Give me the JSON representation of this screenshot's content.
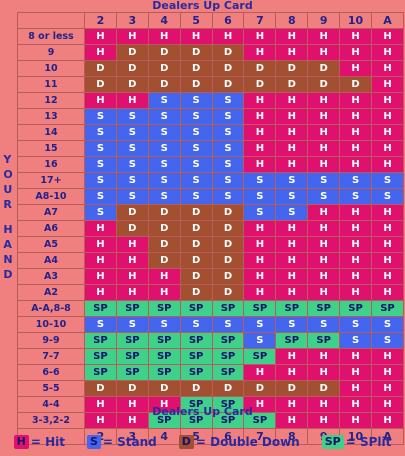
{
  "header_top": "Dealers Up Card",
  "header_bottom": "Dealers Up Card",
  "side_label_top": [
    "Y",
    "O",
    "U",
    "R"
  ],
  "side_label_bottom": [
    "H",
    "A",
    "N",
    "D"
  ],
  "dealer_cards": [
    "2",
    "3",
    "4",
    "5",
    "6",
    "7",
    "8",
    "9",
    "10",
    "A"
  ],
  "rows": [
    {
      "hand": "8 or less",
      "actions": [
        "H",
        "H",
        "H",
        "H",
        "H",
        "H",
        "H",
        "H",
        "H",
        "H"
      ]
    },
    {
      "hand": "9",
      "actions": [
        "H",
        "D",
        "D",
        "D",
        "D",
        "H",
        "H",
        "H",
        "H",
        "H"
      ]
    },
    {
      "hand": "10",
      "actions": [
        "D",
        "D",
        "D",
        "D",
        "D",
        "D",
        "D",
        "D",
        "H",
        "H"
      ]
    },
    {
      "hand": "11",
      "actions": [
        "D",
        "D",
        "D",
        "D",
        "D",
        "D",
        "D",
        "D",
        "D",
        "H"
      ]
    },
    {
      "hand": "12",
      "actions": [
        "H",
        "H",
        "S",
        "S",
        "S",
        "H",
        "H",
        "H",
        "H",
        "H"
      ]
    },
    {
      "hand": "13",
      "actions": [
        "S",
        "S",
        "S",
        "S",
        "S",
        "H",
        "H",
        "H",
        "H",
        "H"
      ]
    },
    {
      "hand": "14",
      "actions": [
        "S",
        "S",
        "S",
        "S",
        "S",
        "H",
        "H",
        "H",
        "H",
        "H"
      ]
    },
    {
      "hand": "15",
      "actions": [
        "S",
        "S",
        "S",
        "S",
        "S",
        "H",
        "H",
        "H",
        "H",
        "H"
      ]
    },
    {
      "hand": "16",
      "actions": [
        "S",
        "S",
        "S",
        "S",
        "S",
        "H",
        "H",
        "H",
        "H",
        "H"
      ]
    },
    {
      "hand": "17+",
      "actions": [
        "S",
        "S",
        "S",
        "S",
        "S",
        "S",
        "S",
        "S",
        "S",
        "S"
      ]
    },
    {
      "hand": "A8-10",
      "actions": [
        "S",
        "S",
        "S",
        "S",
        "S",
        "S",
        "S",
        "S",
        "S",
        "S"
      ]
    },
    {
      "hand": "A7",
      "actions": [
        "S",
        "D",
        "D",
        "D",
        "D",
        "S",
        "S",
        "H",
        "H",
        "H"
      ]
    },
    {
      "hand": "A6",
      "actions": [
        "H",
        "D",
        "D",
        "D",
        "D",
        "H",
        "H",
        "H",
        "H",
        "H"
      ]
    },
    {
      "hand": "A5",
      "actions": [
        "H",
        "H",
        "D",
        "D",
        "D",
        "H",
        "H",
        "H",
        "H",
        "H"
      ]
    },
    {
      "hand": "A4",
      "actions": [
        "H",
        "H",
        "D",
        "D",
        "D",
        "H",
        "H",
        "H",
        "H",
        "H"
      ]
    },
    {
      "hand": "A3",
      "actions": [
        "H",
        "H",
        "H",
        "D",
        "D",
        "H",
        "H",
        "H",
        "H",
        "H"
      ]
    },
    {
      "hand": "A2",
      "actions": [
        "H",
        "H",
        "H",
        "D",
        "D",
        "H",
        "H",
        "H",
        "H",
        "H"
      ]
    },
    {
      "hand": "A-A,8-8",
      "actions": [
        "SP",
        "SP",
        "SP",
        "SP",
        "SP",
        "SP",
        "SP",
        "SP",
        "SP",
        "SP"
      ]
    },
    {
      "hand": "10-10",
      "actions": [
        "S",
        "S",
        "S",
        "S",
        "S",
        "S",
        "S",
        "S",
        "S",
        "S"
      ]
    },
    {
      "hand": "9-9",
      "actions": [
        "SP",
        "SP",
        "SP",
        "SP",
        "SP",
        "S",
        "SP",
        "SP",
        "S",
        "S"
      ]
    },
    {
      "hand": "7-7",
      "actions": [
        "SP",
        "SP",
        "SP",
        "SP",
        "SP",
        "SP",
        "H",
        "H",
        "H",
        "H"
      ]
    },
    {
      "hand": "6-6",
      "actions": [
        "SP",
        "SP",
        "SP",
        "SP",
        "SP",
        "H",
        "H",
        "H",
        "H",
        "H"
      ]
    },
    {
      "hand": "5-5",
      "actions": [
        "D",
        "D",
        "D",
        "D",
        "D",
        "D",
        "D",
        "D",
        "H",
        "H"
      ]
    },
    {
      "hand": "4-4",
      "actions": [
        "H",
        "H",
        "H",
        "SP",
        "SP",
        "H",
        "H",
        "H",
        "H",
        "H"
      ]
    },
    {
      "hand": "3-3,2-2",
      "actions": [
        "H",
        "H",
        "SP",
        "SP",
        "SP",
        "SP",
        "H",
        "H",
        "H",
        "H"
      ]
    }
  ],
  "action_text": {
    "H": "H",
    "S": "S",
    "D": "D",
    "SP": "SP"
  },
  "legend": [
    {
      "code": "H",
      "swatch": "H",
      "label": "= Hit",
      "color": "#e0116e"
    },
    {
      "code": "S",
      "swatch": "S",
      "label": "= Stand",
      "color": "#4466ee"
    },
    {
      "code": "D",
      "swatch": "D",
      "label": "= Double Down",
      "color": "#a24f32"
    },
    {
      "code": "SP",
      "swatch": "SP",
      "label": "= SPlit",
      "color": "#3fd08a"
    }
  ],
  "colors": {
    "background": "#f08080",
    "hit": "#e0116e",
    "stand": "#4466ee",
    "double": "#a24f32",
    "split": "#3fd08a",
    "text": "#2a2aa0"
  }
}
